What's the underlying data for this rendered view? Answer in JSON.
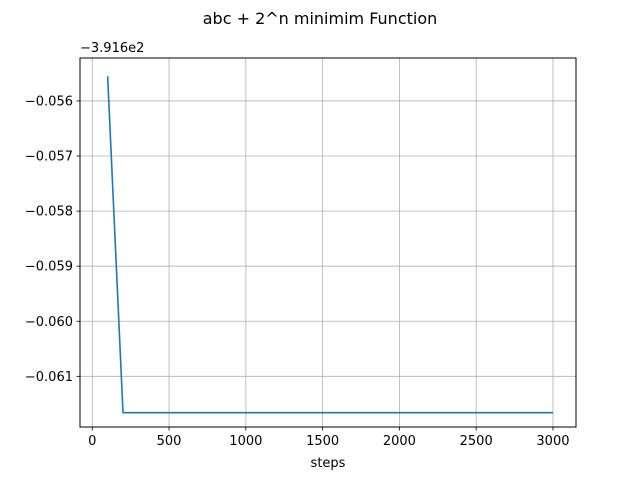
{
  "chart_data": {
    "type": "line",
    "title": "abc + 2^n minimim Function",
    "xlabel": "steps",
    "ylabel": "",
    "offset_label": "−3.916e2",
    "xlim": [
      -80,
      3150
    ],
    "ylim": [
      -0.06192,
      -0.05522
    ],
    "x_ticks": [
      0,
      500,
      1000,
      1500,
      2000,
      2500,
      3000
    ],
    "x_tick_labels": [
      "0",
      "500",
      "1000",
      "1500",
      "2000",
      "2500",
      "3000"
    ],
    "y_ticks": [
      -0.056,
      -0.057,
      -0.058,
      -0.059,
      -0.06,
      -0.061
    ],
    "y_tick_labels": [
      "−0.056",
      "−0.057",
      "−0.058",
      "−0.059",
      "−0.060",
      "−0.061"
    ],
    "grid": true,
    "series": [
      {
        "color": "#1f77b4",
        "x": [
          100,
          200,
          300,
          400,
          500,
          600,
          700,
          800,
          900,
          1000,
          1100,
          1200,
          1300,
          1400,
          1500,
          1600,
          1700,
          1800,
          1900,
          2000,
          2100,
          2200,
          2300,
          2400,
          2500,
          2600,
          2700,
          2800,
          2900,
          3000
        ],
        "y": [
          -0.05555,
          -0.06166,
          -0.06166,
          -0.06166,
          -0.06166,
          -0.06166,
          -0.06166,
          -0.06166,
          -0.06166,
          -0.06166,
          -0.06166,
          -0.06166,
          -0.06166,
          -0.06166,
          -0.06166,
          -0.06166,
          -0.06166,
          -0.06166,
          -0.06166,
          -0.06166,
          -0.06166,
          -0.06166,
          -0.06166,
          -0.06166,
          -0.06166,
          -0.06166,
          -0.06166,
          -0.06166,
          -0.06166,
          -0.06166
        ]
      }
    ]
  }
}
